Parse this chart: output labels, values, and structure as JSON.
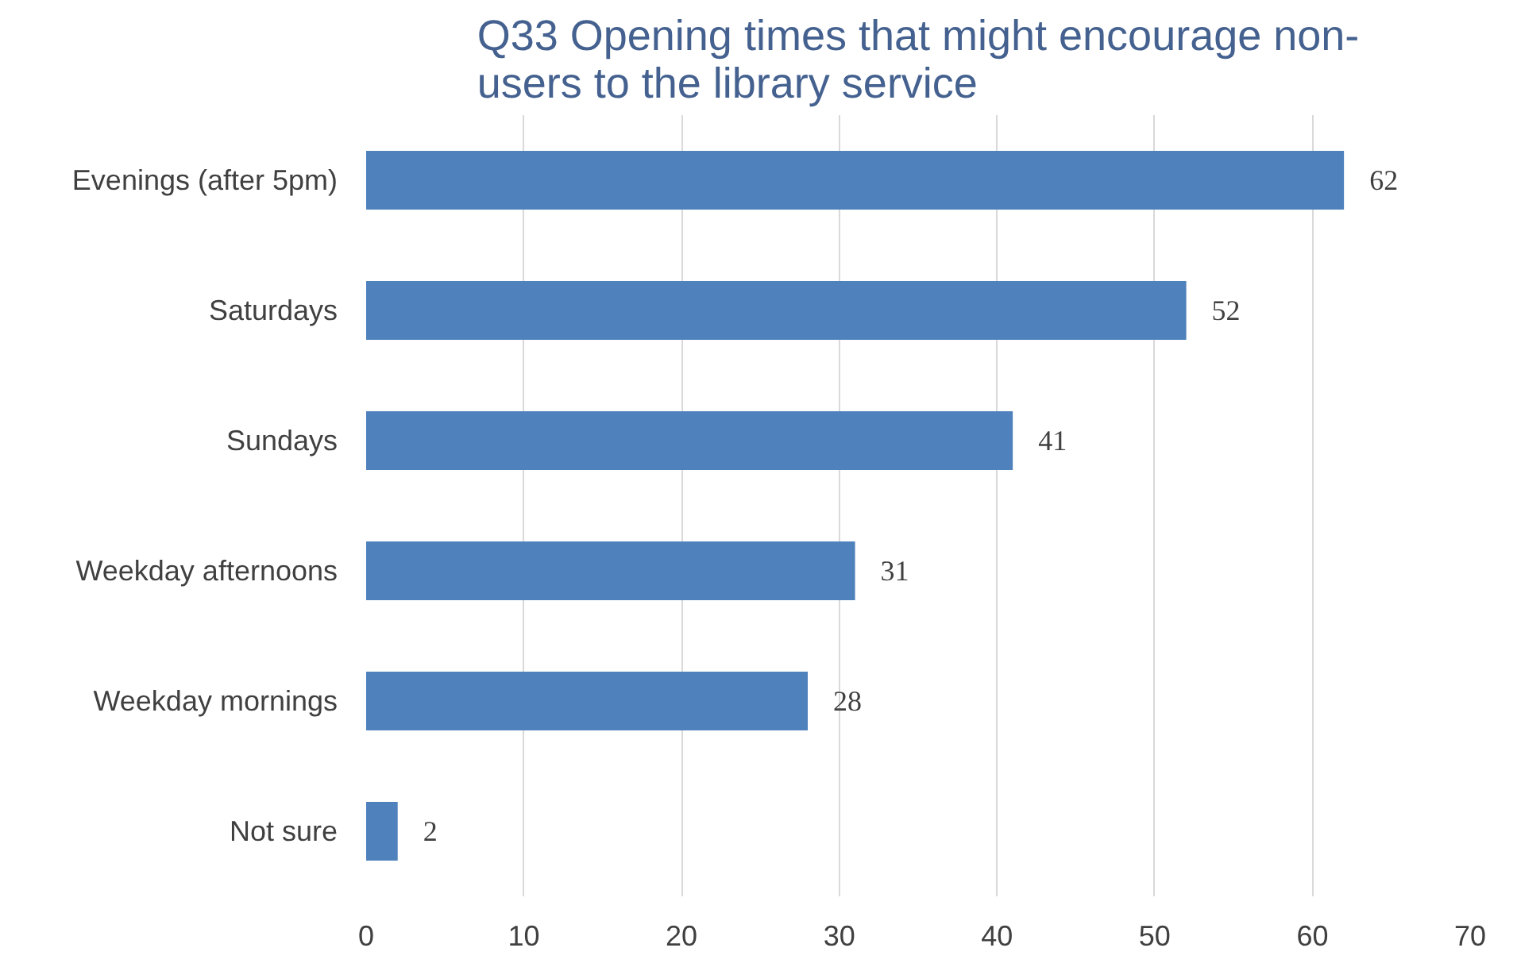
{
  "chart_data": {
    "type": "bar",
    "orientation": "horizontal",
    "title": "Q33 Opening times that might encourage non-users to the library service",
    "categories": [
      "Evenings (after 5pm)",
      "Saturdays",
      "Sundays",
      "Weekday afternoons",
      "Weekday mornings",
      "Not sure"
    ],
    "values": [
      62,
      52,
      41,
      31,
      28,
      2
    ],
    "color": "#4f81bd",
    "xlim": [
      0,
      70
    ],
    "xticks": [
      0,
      10,
      20,
      30,
      40,
      50,
      60,
      70
    ],
    "grid": "x",
    "data_labels": true
  }
}
